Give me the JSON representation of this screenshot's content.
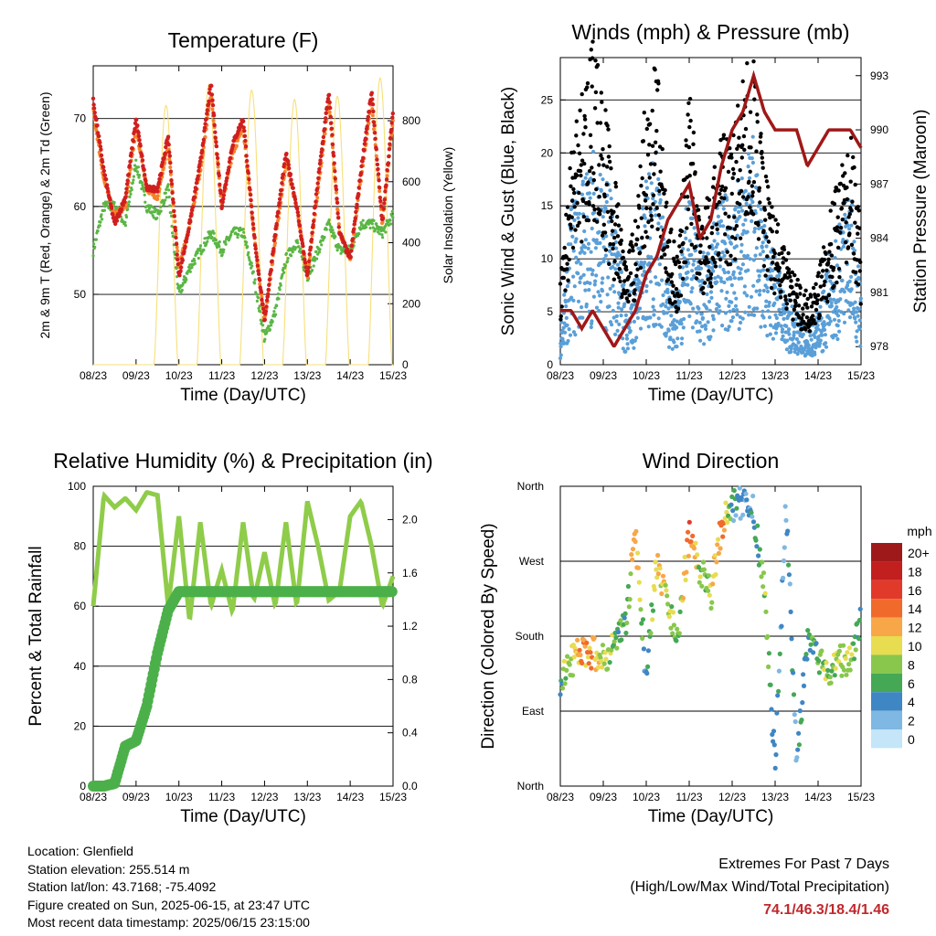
{
  "footer": {
    "location": "Location: Glenfield",
    "elevation": "Station elevation: 255.514 m",
    "latlon": "Station lat/lon: 43.7168; -75.4092",
    "created": "Figure created on Sun, 2025-06-15, at 23:47 UTC",
    "recent": "Most recent data timestamp: 2025/06/15 23:15:00"
  },
  "extremes": {
    "title": "Extremes For Past 7 Days",
    "subtitle": "(High/Low/Max Wind/Total Precipitation)",
    "values": "74.1/46.3/18.4/1.46"
  },
  "colors": {
    "temp2m": "#d01f1f",
    "temp9m": "#f5822a",
    "dewpoint": "#5ab645",
    "solar": "#f7e07a",
    "wind": "#5a9fd8",
    "gust": "#000000",
    "pressure": "#a01818",
    "rh": "#8fcc4a",
    "precip": "#4cb04a"
  },
  "x_ticks": [
    "08/23",
    "09/23",
    "10/23",
    "11/23",
    "12/23",
    "13/23",
    "14/23",
    "15/23"
  ],
  "chart_data": [
    {
      "id": "temperature",
      "type": "line",
      "title": "Temperature (F)",
      "xlabel": "Time (Day/UTC)",
      "ylabel": "2m & 9m T (Red, Orange) & 2m Td (Green)",
      "ylabel_right": "Solar Insolation (Yellow)",
      "ylim": [
        42,
        76
      ],
      "yticks": [
        50,
        60,
        70
      ],
      "ylim_right": [
        0,
        980
      ],
      "yticks_right": [
        0,
        200,
        400,
        600,
        800
      ],
      "x": [
        0,
        0.25,
        0.5,
        0.75,
        1,
        1.25,
        1.5,
        1.75,
        2,
        2.25,
        2.5,
        2.75,
        3,
        3.25,
        3.5,
        3.75,
        4,
        4.25,
        4.5,
        4.75,
        5,
        5.25,
        5.5,
        5.75,
        6,
        6.25,
        6.5,
        6.75,
        7
      ],
      "series": [
        {
          "key": "temp2m",
          "values": [
            72,
            64,
            58,
            61,
            70,
            62,
            62,
            68,
            52,
            58,
            65,
            74,
            60,
            67,
            70,
            57,
            47,
            57,
            66,
            60,
            52,
            63,
            73,
            57,
            54,
            64,
            73,
            58,
            71
          ]
        },
        {
          "key": "temp9m",
          "values": [
            71,
            63,
            59,
            60,
            69,
            62,
            61,
            67,
            53,
            58,
            64,
            73,
            60,
            66,
            69,
            57,
            47,
            56,
            65,
            60,
            52,
            62,
            72,
            57,
            54,
            63,
            72,
            58,
            70
          ]
        },
        {
          "key": "dewpoint",
          "values": [
            55,
            60,
            60,
            58,
            65,
            60,
            59,
            62,
            50,
            53,
            55,
            57,
            55,
            57,
            57,
            52,
            45,
            48,
            54,
            56,
            52,
            55,
            58,
            55,
            55,
            58,
            58,
            57,
            59
          ]
        }
      ],
      "solar_peaks": [
        {
          "day": 0,
          "value": 0
        },
        {
          "day": 1,
          "value": 850
        },
        {
          "day": 2,
          "value": 920
        },
        {
          "day": 3,
          "value": 900
        },
        {
          "day": 4,
          "value": 870
        },
        {
          "day": 5,
          "value": 880
        },
        {
          "day": 6,
          "value": 940
        }
      ]
    },
    {
      "id": "winds",
      "type": "scatter",
      "title": "Winds (mph) & Pressure (mb)",
      "xlabel": "Time (Day/UTC)",
      "ylabel": "Sonic Wind & Gust (Blue, Black)",
      "ylabel_right": "Station Pressure (Maroon)",
      "ylim": [
        0,
        29
      ],
      "yticks": [
        0,
        5,
        10,
        15,
        20,
        25
      ],
      "ylim_right": [
        977,
        994
      ],
      "yticks_right": [
        978,
        981,
        984,
        987,
        990,
        993
      ],
      "x": [
        0,
        0.25,
        0.5,
        0.75,
        1,
        1.25,
        1.5,
        1.75,
        2,
        2.25,
        2.5,
        2.75,
        3,
        3.25,
        3.5,
        3.75,
        4,
        4.25,
        4.5,
        4.75,
        5,
        5.25,
        5.5,
        5.75,
        6,
        6.25,
        6.5,
        6.75,
        7
      ],
      "series": [
        {
          "key": "wind",
          "values": [
            2,
            9,
            10,
            12,
            11,
            9,
            4,
            5,
            11,
            12,
            5,
            4,
            11,
            6,
            7,
            10,
            9,
            12,
            14,
            8,
            6,
            4,
            3,
            2,
            3,
            6,
            8,
            10,
            4
          ]
        },
        {
          "key": "gust",
          "values": [
            6,
            15,
            19,
            22,
            19,
            13,
            8,
            10,
            19,
            21,
            10,
            8,
            20,
            10,
            12,
            16,
            15,
            20,
            21,
            14,
            10,
            8,
            6,
            5,
            6,
            10,
            13,
            16,
            9
          ]
        },
        {
          "key": "pressure",
          "values": [
            980,
            980,
            979,
            980,
            979,
            978,
            979,
            980,
            982,
            983,
            985,
            986,
            987,
            984,
            985,
            988,
            990,
            991,
            993,
            991,
            990,
            990,
            990,
            988,
            989,
            990,
            990,
            990,
            989
          ]
        }
      ]
    },
    {
      "id": "humidity",
      "type": "line",
      "title": "Relative Humidity (%) & Precipitation (in)",
      "xlabel": "Time (Day/UTC)",
      "ylabel": "Percent & Total Rainfall",
      "ylim": [
        0,
        100
      ],
      "yticks": [
        0,
        20,
        40,
        60,
        80,
        100
      ],
      "ylim_right": [
        0,
        2.25
      ],
      "yticks_right": [
        "0.0",
        "0.4",
        "0.8",
        "1.2",
        "1.6",
        "2.0"
      ],
      "x": [
        0,
        0.25,
        0.5,
        0.75,
        1,
        1.25,
        1.5,
        1.75,
        2,
        2.25,
        2.5,
        2.75,
        3,
        3.25,
        3.5,
        3.75,
        4,
        4.25,
        4.5,
        4.75,
        5,
        5.25,
        5.5,
        5.75,
        6,
        6.25,
        6.5,
        6.75,
        7
      ],
      "series": [
        {
          "key": "rh",
          "values": [
            60,
            97,
            93,
            96,
            92,
            98,
            97,
            60,
            90,
            55,
            88,
            60,
            72,
            58,
            88,
            62,
            78,
            60,
            88,
            60,
            95,
            80,
            62,
            65,
            90,
            95,
            80,
            60,
            70
          ]
        },
        {
          "key": "precip",
          "values": [
            0,
            0,
            0.02,
            0.3,
            0.34,
            0.6,
            1.0,
            1.32,
            1.46,
            1.46,
            1.46,
            1.46,
            1.46,
            1.46,
            1.46,
            1.46,
            1.46,
            1.46,
            1.46,
            1.46,
            1.46,
            1.46,
            1.46,
            1.46,
            1.46,
            1.46,
            1.46,
            1.46,
            1.46
          ]
        }
      ]
    },
    {
      "id": "direction",
      "type": "scatter",
      "title": "Wind Direction",
      "xlabel": "Time (Day/UTC)",
      "ylabel": "Direction (Colored By Speed)",
      "yticks": [
        "North",
        "East",
        "South",
        "West",
        "North"
      ],
      "legend_title": "mph",
      "legend_labels": [
        "20+",
        "18",
        "16",
        "14",
        "12",
        "10",
        "8",
        "6",
        "4",
        "2",
        "0"
      ],
      "legend_colors": [
        "#9e1a1a",
        "#c21f1f",
        "#e23a2a",
        "#f06a2c",
        "#f8a748",
        "#e8dc50",
        "#88c74c",
        "#45a855",
        "#3f86c4",
        "#7fb8e2",
        "#c4e6f8"
      ],
      "x": [
        0,
        0.25,
        0.5,
        0.75,
        1,
        1.25,
        1.5,
        1.75,
        2,
        2.25,
        2.5,
        2.75,
        3,
        3.25,
        3.5,
        3.75,
        4,
        4.25,
        4.5,
        4.75,
        5,
        5.25,
        5.5,
        5.75,
        6,
        6.25,
        6.5,
        6.75,
        7
      ],
      "dir": [
        130,
        150,
        160,
        160,
        150,
        170,
        190,
        300,
        130,
        270,
        210,
        190,
        300,
        260,
        230,
        310,
        335,
        340,
        330,
        240,
        20,
        340,
        35,
        170,
        150,
        140,
        150,
        155,
        200
      ],
      "speed": [
        6,
        10,
        13,
        12,
        9,
        7,
        5,
        12,
        4,
        11,
        9,
        7,
        14,
        8,
        9,
        14,
        4,
        3,
        4,
        8,
        4,
        3,
        4,
        5,
        7,
        8,
        9,
        8,
        5
      ]
    }
  ]
}
